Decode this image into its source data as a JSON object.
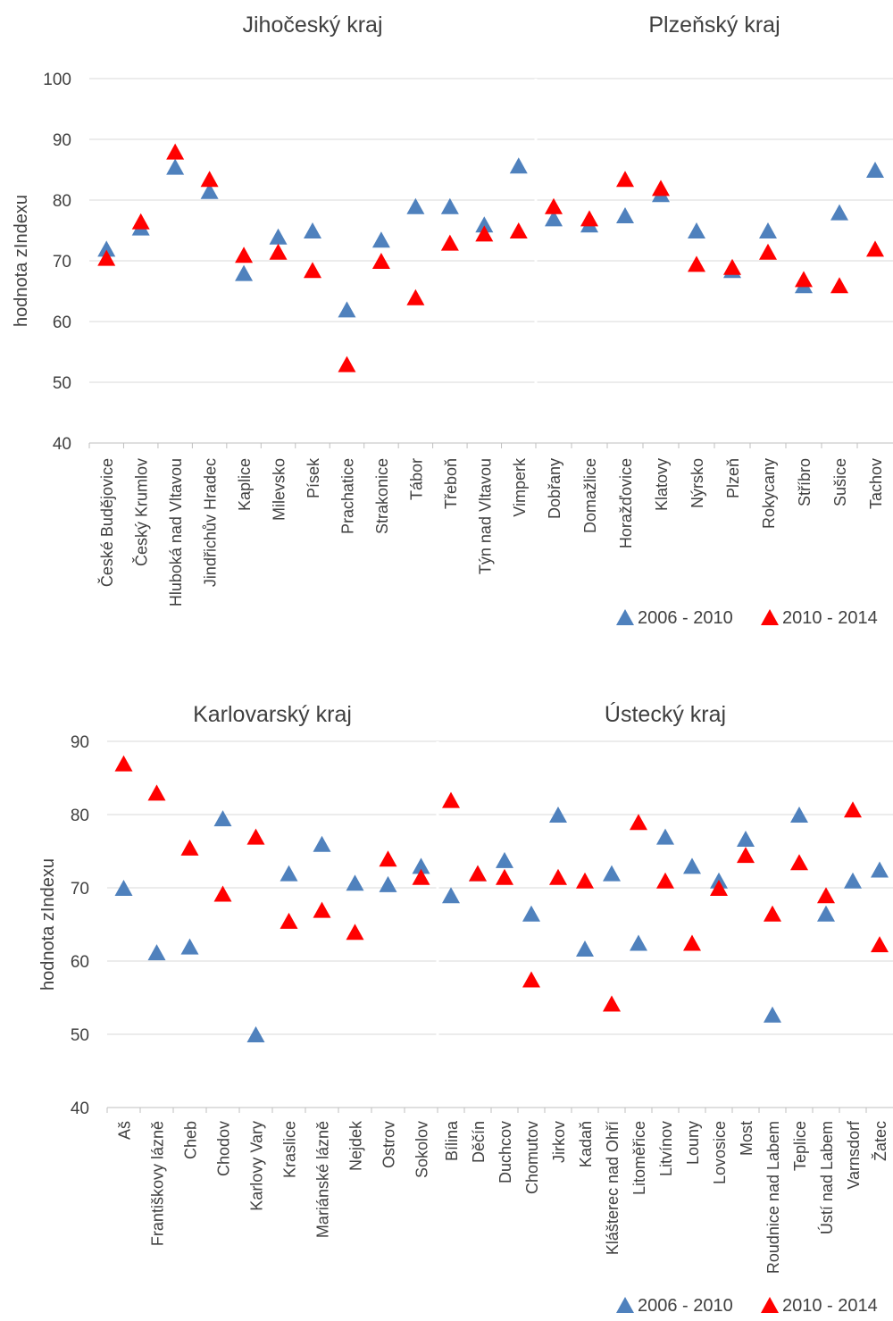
{
  "colors": {
    "series1": "#4f81bd",
    "series2": "#ff0000",
    "grid": "#d9d9d9",
    "axis": "#bfbfbf",
    "text": "#404040"
  },
  "legend": {
    "series1": "2006 - 2010",
    "series2": "2010 - 2014",
    "marker": "triangle"
  },
  "chart_data": [
    {
      "type": "scatter",
      "ylabel": "hodnota zIndexu",
      "ylim": [
        40,
        100
      ],
      "yticks": [
        40,
        50,
        60,
        70,
        80,
        90,
        100
      ],
      "grid": true,
      "legend_position": "bottom-right",
      "panels": [
        {
          "title": "Jihočeský kraj",
          "categories": [
            "České Budějovice",
            "Český Krumlov",
            "Hluboká nad Vltavou",
            "Jindřichův Hradec",
            "Kaplice",
            "Milevsko",
            "Písek",
            "Prachatice",
            "Strakonice",
            "Tábor",
            "Třeboň",
            "Týn nad Vltavou",
            "Vimperk"
          ],
          "series": [
            {
              "name": "2006 - 2010",
              "values": [
                72,
                75.5,
                85.5,
                81.5,
                68,
                74,
                75,
                62,
                73.5,
                79,
                79,
                76,
                85.7
              ]
            },
            {
              "name": "2010 - 2014",
              "values": [
                70.5,
                76.5,
                88,
                83.5,
                71,
                71.5,
                68.5,
                53,
                70,
                64,
                73,
                74.5,
                75
              ]
            }
          ]
        },
        {
          "title": "Plzeňský kraj",
          "categories": [
            "Dobřany",
            "Domažlice",
            "Horažďovice",
            "Klatovy",
            "Nýrsko",
            "Plzeň",
            "Rokycany",
            "Stříbro",
            "Sušice",
            "Tachov"
          ],
          "series": [
            {
              "name": "2006 - 2010",
              "values": [
                77,
                76,
                77.5,
                81,
                75,
                68.5,
                75,
                66,
                78,
                85
              ]
            },
            {
              "name": "2010 - 2014",
              "values": [
                79,
                77,
                83.5,
                82,
                69.5,
                69,
                71.5,
                67,
                66,
                72
              ]
            }
          ]
        }
      ]
    },
    {
      "type": "scatter",
      "ylabel": "hodnota zIndexu",
      "ylim": [
        40,
        90
      ],
      "yticks": [
        40,
        50,
        60,
        70,
        80,
        90
      ],
      "grid": true,
      "legend_position": "bottom-right",
      "panels": [
        {
          "title": "Karlovarský kraj",
          "categories": [
            "Aš",
            "Františkovy lázně",
            "Cheb",
            "Chodov",
            "Karlovy Vary",
            "Kraslice",
            "Mariánské lázně",
            "Nejdek",
            "Ostrov",
            "Sokolov"
          ],
          "series": [
            {
              "name": "2006 - 2010",
              "values": [
                70,
                61.2,
                62,
                79.5,
                50,
                72,
                76,
                70.7,
                70.5,
                73
              ]
            },
            {
              "name": "2010 - 2014",
              "values": [
                87,
                83,
                75.5,
                69.2,
                77,
                65.5,
                67,
                64,
                74,
                71.5
              ]
            }
          ]
        },
        {
          "title": "Ústecký kraj",
          "categories": [
            "Bílina",
            "Děčín",
            "Duchcov",
            "Chomutov",
            "Jirkov",
            "Kadaň",
            "Klášterec nad Ohří",
            "Litoměřice",
            "Litvínov",
            "Louny",
            "Lovosice",
            "Most",
            "Roudnice nad Labem",
            "Teplice",
            "Ústí nad Labem",
            "Varnsdorf",
            "Žatec"
          ],
          "series": [
            {
              "name": "2006 - 2010",
              "values": [
                69,
                72,
                73.8,
                66.5,
                80,
                61.7,
                72,
                62.5,
                77,
                73,
                71,
                76.7,
                52.7,
                80,
                66.5,
                71,
                72.5
              ]
            },
            {
              "name": "2010 - 2014",
              "values": [
                82,
                72,
                71.5,
                57.5,
                71.5,
                71,
                54.2,
                79,
                71,
                62.5,
                70,
                74.5,
                66.5,
                73.5,
                69,
                80.7,
                62.3
              ]
            }
          ]
        }
      ]
    }
  ]
}
